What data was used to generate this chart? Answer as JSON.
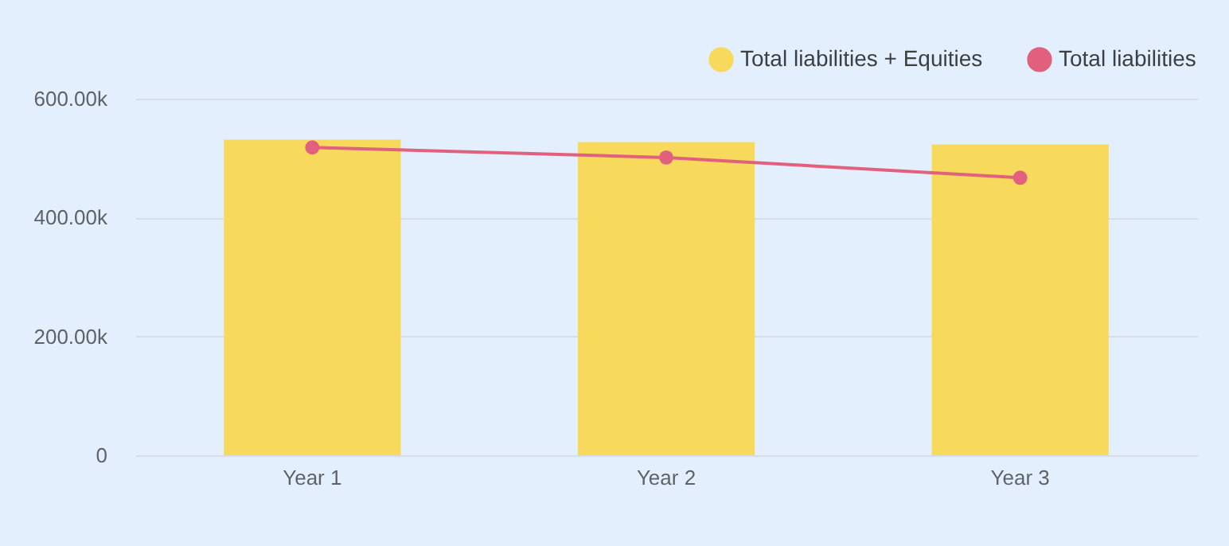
{
  "chart_data": {
    "type": "bar",
    "categories": [
      "Year 1",
      "Year 2",
      "Year 3"
    ],
    "series": [
      {
        "name": "Total liabilities + Equities",
        "color": "#f7d95c",
        "values": [
          531000,
          527000,
          523000
        ]
      },
      {
        "name": "Total liabilities",
        "type": "line",
        "color": "#e0607e",
        "values": [
          518000,
          501000,
          467000
        ]
      }
    ],
    "ylim": [
      0,
      600000
    ],
    "yticks": [
      0,
      {
        "value": 200000,
        "label": "200.00k"
      },
      {
        "value": 400000,
        "label": "400.00k"
      },
      {
        "value": 600000,
        "label": "600.00k"
      }
    ],
    "grid": "y",
    "legend": "top right",
    "marker": "circle"
  }
}
